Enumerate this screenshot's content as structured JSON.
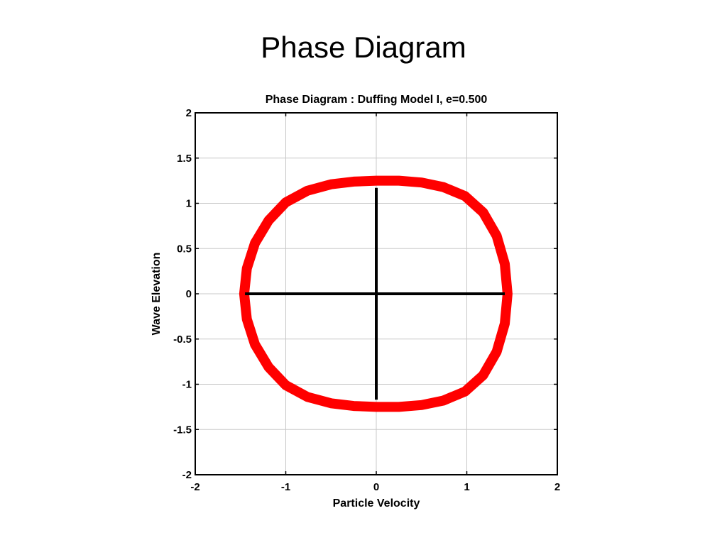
{
  "slide": {
    "title": "Phase Diagram"
  },
  "chart_data": {
    "type": "line",
    "title": "Phase Diagram : Duffing Model I, e=0.500",
    "xlabel": "Particle Velocity",
    "ylabel": "Wave Elevation",
    "xlim": [
      -2,
      2
    ],
    "ylim": [
      -2,
      2
    ],
    "x_ticks": [
      -2,
      -1,
      0,
      1,
      2
    ],
    "x_tick_labels": [
      "-2",
      "-1",
      "0",
      "1",
      "2"
    ],
    "y_ticks": [
      -2,
      -1.5,
      -1,
      -0.5,
      0,
      0.5,
      1,
      1.5,
      2
    ],
    "y_tick_labels": [
      "-2",
      "-1.5",
      "-1",
      "-0.5",
      "0",
      "0.5",
      "1",
      "1.5",
      "2"
    ],
    "grid": true,
    "series": [
      {
        "color": "#ff0000",
        "x": [
          1.45,
          1.42,
          1.33,
          1.18,
          0.98,
          0.74,
          0.5,
          0.25,
          0.0,
          -0.25,
          -0.5,
          -0.76,
          -1.0,
          -1.19,
          -1.34,
          -1.43,
          -1.46,
          -1.43,
          -1.34,
          -1.19,
          -1.0,
          -0.76,
          -0.5,
          -0.25,
          0.0,
          0.25,
          0.5,
          0.74,
          0.98,
          1.18,
          1.33,
          1.42,
          1.45
        ],
        "y": [
          0.0,
          0.33,
          0.64,
          0.9,
          1.08,
          1.18,
          1.23,
          1.25,
          1.25,
          1.24,
          1.21,
          1.14,
          1.01,
          0.81,
          0.56,
          0.28,
          0.0,
          -0.28,
          -0.56,
          -0.81,
          -1.01,
          -1.14,
          -1.21,
          -1.24,
          -1.25,
          -1.25,
          -1.23,
          -1.18,
          -1.08,
          -0.9,
          -0.64,
          -0.33,
          0.0
        ]
      },
      {
        "color": "#000000",
        "x": [
          -1.45,
          1.42
        ],
        "y": [
          0,
          0
        ]
      },
      {
        "color": "#000000",
        "x": [
          0,
          0
        ],
        "y": [
          -1.17,
          1.17
        ]
      }
    ]
  }
}
